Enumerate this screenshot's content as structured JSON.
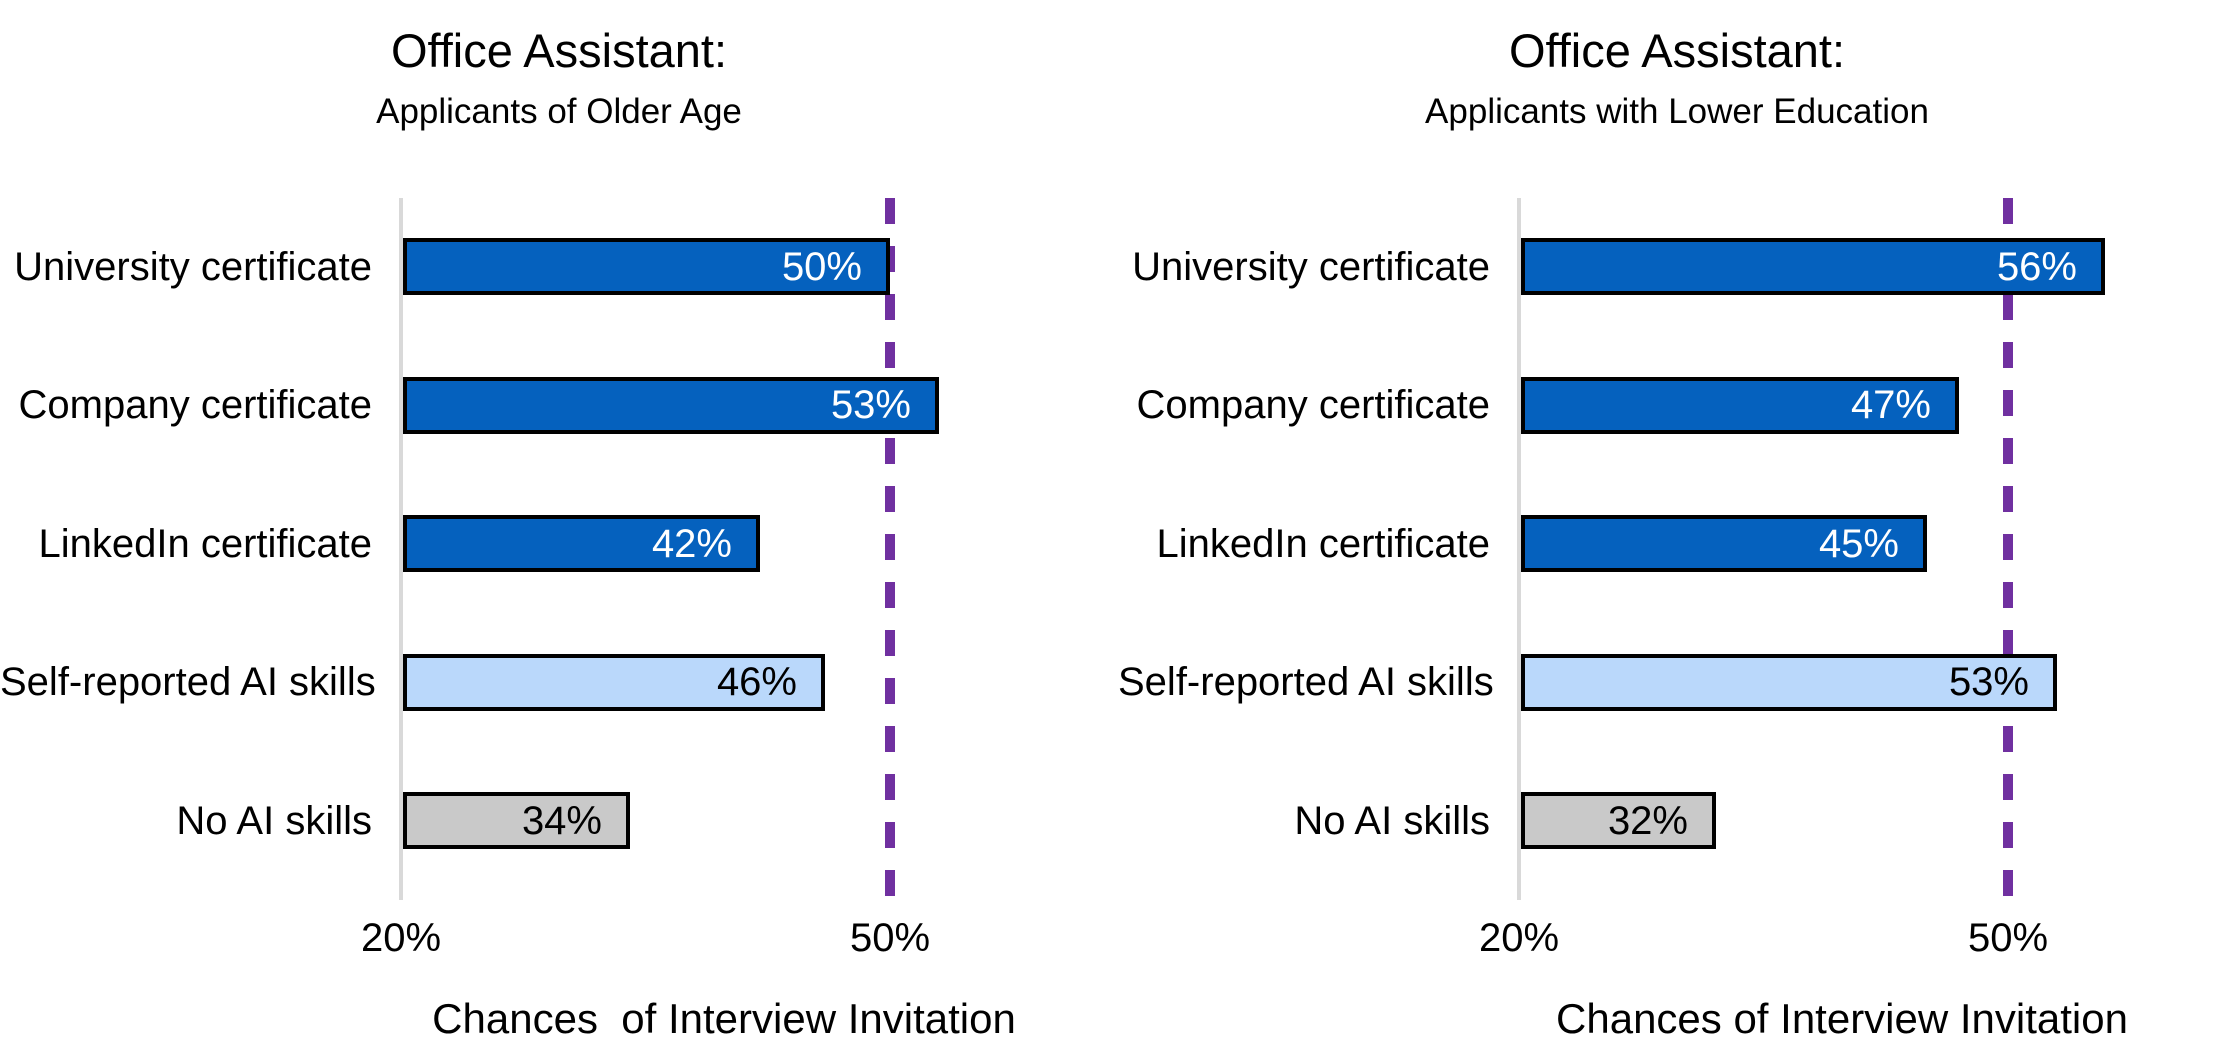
{
  "figure": {
    "background": "#ffffff",
    "axis_line_color": "#D9D9D9",
    "bar_border_color": "#000000",
    "reference_line_color": "#7030A0",
    "dark_blue": "#0561BE",
    "light_blue": "#BAD8FB",
    "gray": "#C9C9C9"
  },
  "chart_data": [
    {
      "type": "bar",
      "orientation": "horizontal",
      "title": "Office Assistant:",
      "subtitle": "Applicants of Older Age",
      "categories": [
        "University certificate",
        "Company certificate",
        "LinkedIn certificate",
        "Self-reported AI skills",
        "No AI skills"
      ],
      "values": [
        50,
        53,
        42,
        46,
        34
      ],
      "value_labels": [
        "50%",
        "53%",
        "42%",
        "46%",
        "34%"
      ],
      "bar_colors": [
        "#0561BE",
        "#0561BE",
        "#0561BE",
        "#BAD8FB",
        "#C9C9C9"
      ],
      "value_label_colors": [
        "#ffffff",
        "#ffffff",
        "#ffffff",
        "#000000",
        "#000000"
      ],
      "xlabel": "Chances  of Interview Invitation",
      "ylabel": "",
      "xlim": [
        20,
        50
      ],
      "xticks": [
        {
          "value": 20,
          "label": "20%"
        },
        {
          "value": 50,
          "label": "50%"
        }
      ],
      "reference_line": {
        "value": 50,
        "color": "#7030A0",
        "style": "dashed"
      },
      "grid": false,
      "legend": "none"
    },
    {
      "type": "bar",
      "orientation": "horizontal",
      "title": "Office Assistant:",
      "subtitle": "Applicants with Lower Education",
      "categories": [
        "University certificate",
        "Company certificate",
        "LinkedIn certificate",
        "Self-reported AI skills",
        "No AI skills"
      ],
      "values": [
        56,
        47,
        45,
        53,
        32
      ],
      "value_labels": [
        "56%",
        "47%",
        "45%",
        "53%",
        "32%"
      ],
      "bar_colors": [
        "#0561BE",
        "#0561BE",
        "#0561BE",
        "#BAD8FB",
        "#C9C9C9"
      ],
      "value_label_colors": [
        "#ffffff",
        "#ffffff",
        "#ffffff",
        "#000000",
        "#000000"
      ],
      "xlabel": "Chances of Interview Invitation",
      "ylabel": "",
      "xlim": [
        20,
        50
      ],
      "xticks": [
        {
          "value": 20,
          "label": "20%"
        },
        {
          "value": 50,
          "label": "50%"
        }
      ],
      "reference_line": {
        "value": 50,
        "color": "#7030A0",
        "style": "dashed"
      },
      "grid": false,
      "legend": "none"
    }
  ]
}
